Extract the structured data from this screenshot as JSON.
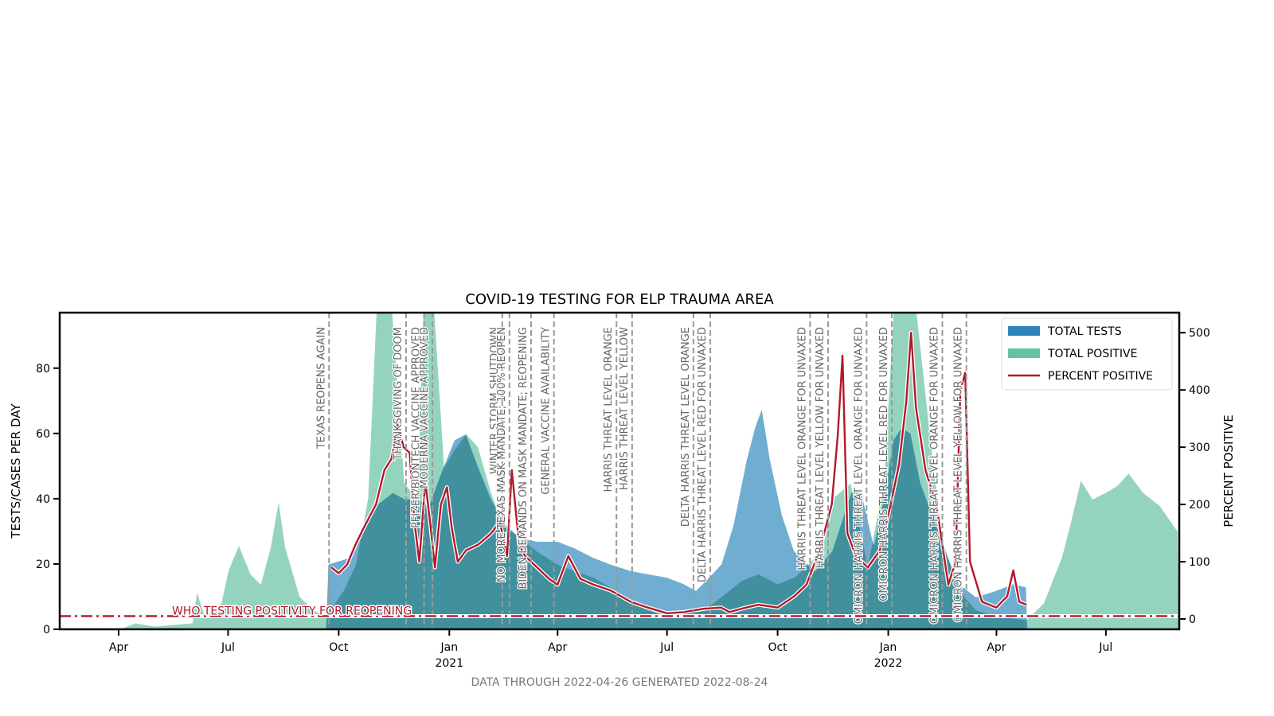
{
  "chart_data": {
    "type": "area",
    "title": "COVID-19 TESTING FOR ELP TRAUMA AREA",
    "ylabel": "TESTS/CASES PER DAY",
    "ylabel_right": "PERCENT POSITIVE",
    "ylim": [
      0,
      97
    ],
    "ylim_right": [
      -18,
      535
    ],
    "xlim": [
      "2020-02-12",
      "2022-08-31"
    ],
    "grid": false,
    "legend_placement": "top-right",
    "yticks": [
      0,
      20,
      40,
      60,
      80
    ],
    "yticks_right": [
      0,
      100,
      200,
      300,
      400,
      500
    ],
    "xticks": [
      {
        "date": "2020-04-01",
        "label": "Apr",
        "year": ""
      },
      {
        "date": "2020-07-01",
        "label": "Jul",
        "year": ""
      },
      {
        "date": "2020-10-01",
        "label": "Oct",
        "year": ""
      },
      {
        "date": "2021-01-01",
        "label": "Jan",
        "year": "2021"
      },
      {
        "date": "2021-04-01",
        "label": "Apr",
        "year": ""
      },
      {
        "date": "2021-07-01",
        "label": "Jul",
        "year": ""
      },
      {
        "date": "2021-10-01",
        "label": "Oct",
        "year": ""
      },
      {
        "date": "2022-01-01",
        "label": "Jan",
        "year": "2022"
      },
      {
        "date": "2022-04-01",
        "label": "Apr",
        "year": ""
      },
      {
        "date": "2022-07-01",
        "label": "Jul",
        "year": ""
      }
    ],
    "series": [
      {
        "name": "TOTAL TESTS",
        "color": "#67a9cf",
        "axis": "left",
        "points": [
          [
            "2020-09-20",
            0
          ],
          [
            "2020-09-22",
            20
          ],
          [
            "2020-10-10",
            22
          ],
          [
            "2020-10-20",
            30
          ],
          [
            "2020-11-01",
            38
          ],
          [
            "2020-11-15",
            42
          ],
          [
            "2020-11-25",
            40
          ],
          [
            "2020-12-05",
            40
          ],
          [
            "2020-12-15",
            38
          ],
          [
            "2020-12-25",
            48
          ],
          [
            "2021-01-05",
            58
          ],
          [
            "2021-01-15",
            60
          ],
          [
            "2021-01-25",
            50
          ],
          [
            "2021-02-05",
            40
          ],
          [
            "2021-02-15",
            33
          ],
          [
            "2021-03-01",
            28
          ],
          [
            "2021-03-15",
            27
          ],
          [
            "2021-04-01",
            27
          ],
          [
            "2021-04-15",
            25
          ],
          [
            "2021-05-01",
            22
          ],
          [
            "2021-05-15",
            20
          ],
          [
            "2021-06-01",
            18
          ],
          [
            "2021-06-15",
            17
          ],
          [
            "2021-07-01",
            16
          ],
          [
            "2021-07-15",
            14
          ],
          [
            "2021-07-25",
            12
          ],
          [
            "2021-08-05",
            16
          ],
          [
            "2021-08-15",
            20
          ],
          [
            "2021-08-25",
            32
          ],
          [
            "2021-09-05",
            52
          ],
          [
            "2021-09-12",
            62
          ],
          [
            "2021-09-18",
            68
          ],
          [
            "2021-09-25",
            52
          ],
          [
            "2021-10-05",
            35
          ],
          [
            "2021-10-15",
            24
          ],
          [
            "2021-11-01",
            18
          ],
          [
            "2021-11-15",
            24
          ],
          [
            "2021-12-01",
            42
          ],
          [
            "2021-12-10",
            42
          ],
          [
            "2021-12-20",
            26
          ],
          [
            "2021-12-28",
            40
          ],
          [
            "2022-01-05",
            58
          ],
          [
            "2022-01-12",
            62
          ],
          [
            "2022-01-20",
            60
          ],
          [
            "2022-01-28",
            45
          ],
          [
            "2022-02-10",
            32
          ],
          [
            "2022-02-20",
            22
          ],
          [
            "2022-03-01",
            14
          ],
          [
            "2022-03-15",
            10
          ],
          [
            "2022-04-01",
            12
          ],
          [
            "2022-04-15",
            14
          ],
          [
            "2022-04-26",
            13
          ],
          [
            "2022-04-27",
            0
          ]
        ]
      },
      {
        "name": "TOTAL POSITIVE",
        "color": "#66c2a4",
        "axis": "left",
        "points": [
          [
            "2020-02-12",
            0
          ],
          [
            "2020-04-01",
            0
          ],
          [
            "2020-04-15",
            2
          ],
          [
            "2020-05-01",
            1
          ],
          [
            "2020-06-01",
            2
          ],
          [
            "2020-06-05",
            12
          ],
          [
            "2020-06-12",
            4
          ],
          [
            "2020-06-25",
            8
          ],
          [
            "2020-07-01",
            18
          ],
          [
            "2020-07-10",
            26
          ],
          [
            "2020-07-20",
            17
          ],
          [
            "2020-07-28",
            14
          ],
          [
            "2020-08-05",
            25
          ],
          [
            "2020-08-12",
            40
          ],
          [
            "2020-08-18",
            25
          ],
          [
            "2020-08-30",
            10
          ],
          [
            "2020-09-10",
            6
          ],
          [
            "2020-09-20",
            4
          ],
          [
            "2020-10-05",
            12
          ],
          [
            "2020-10-15",
            20
          ],
          [
            "2020-10-25",
            40
          ],
          [
            "2020-11-01",
            97
          ],
          [
            "2020-11-15",
            97
          ],
          [
            "2020-11-25",
            45
          ],
          [
            "2020-12-05",
            40
          ],
          [
            "2020-12-10",
            97
          ],
          [
            "2020-12-20",
            97
          ],
          [
            "2020-12-28",
            50
          ],
          [
            "2021-01-05",
            55
          ],
          [
            "2021-01-15",
            60
          ],
          [
            "2021-01-25",
            56
          ],
          [
            "2021-02-05",
            42
          ],
          [
            "2021-02-15",
            32
          ],
          [
            "2021-03-01",
            28
          ],
          [
            "2021-03-15",
            24
          ],
          [
            "2021-04-01",
            20
          ],
          [
            "2021-04-15",
            18
          ],
          [
            "2021-05-01",
            16
          ],
          [
            "2021-05-15",
            13
          ],
          [
            "2021-06-01",
            9
          ],
          [
            "2021-06-15",
            6
          ],
          [
            "2021-07-01",
            4
          ],
          [
            "2021-07-15",
            5
          ],
          [
            "2021-08-01",
            6
          ],
          [
            "2021-08-15",
            10
          ],
          [
            "2021-09-01",
            15
          ],
          [
            "2021-09-15",
            17
          ],
          [
            "2021-10-01",
            14
          ],
          [
            "2021-10-15",
            16
          ],
          [
            "2021-11-01",
            22
          ],
          [
            "2021-11-15",
            40
          ],
          [
            "2021-12-01",
            45
          ],
          [
            "2021-12-15",
            20
          ],
          [
            "2021-12-28",
            45
          ],
          [
            "2022-01-05",
            97
          ],
          [
            "2022-01-25",
            97
          ],
          [
            "2022-02-05",
            60
          ],
          [
            "2022-02-15",
            28
          ],
          [
            "2022-03-01",
            12
          ],
          [
            "2022-03-15",
            6
          ],
          [
            "2022-04-01",
            4
          ],
          [
            "2022-04-26",
            3
          ],
          [
            "2022-05-10",
            8
          ],
          [
            "2022-05-25",
            22
          ],
          [
            "2022-06-01",
            32
          ],
          [
            "2022-06-10",
            46
          ],
          [
            "2022-06-20",
            40
          ],
          [
            "2022-07-01",
            42
          ],
          [
            "2022-07-10",
            44
          ],
          [
            "2022-07-20",
            48
          ],
          [
            "2022-08-01",
            42
          ],
          [
            "2022-08-15",
            38
          ],
          [
            "2022-08-30",
            30
          ],
          [
            "2022-08-31",
            0
          ]
        ]
      },
      {
        "name": "PERCENT POSITIVE",
        "color": "#b2182b",
        "axis": "right",
        "points": [
          [
            "2020-09-25",
            90
          ],
          [
            "2020-10-01",
            80
          ],
          [
            "2020-10-08",
            95
          ],
          [
            "2020-10-15",
            130
          ],
          [
            "2020-10-22",
            160
          ],
          [
            "2020-11-01",
            200
          ],
          [
            "2020-11-08",
            260
          ],
          [
            "2020-11-14",
            280
          ],
          [
            "2020-11-19",
            340
          ],
          [
            "2020-11-24",
            300
          ],
          [
            "2020-11-29",
            290
          ],
          [
            "2020-12-03",
            170
          ],
          [
            "2020-12-07",
            100
          ],
          [
            "2020-12-12",
            240
          ],
          [
            "2020-12-16",
            170
          ],
          [
            "2020-12-20",
            90
          ],
          [
            "2020-12-25",
            200
          ],
          [
            "2020-12-30",
            230
          ],
          [
            "2021-01-03",
            160
          ],
          [
            "2021-01-08",
            100
          ],
          [
            "2021-01-15",
            120
          ],
          [
            "2021-01-25",
            130
          ],
          [
            "2021-02-05",
            150
          ],
          [
            "2021-02-12",
            170
          ],
          [
            "2021-02-18",
            110
          ],
          [
            "2021-02-22",
            260
          ],
          [
            "2021-02-28",
            130
          ],
          [
            "2021-03-05",
            110
          ],
          [
            "2021-03-15",
            90
          ],
          [
            "2021-03-25",
            70
          ],
          [
            "2021-04-01",
            60
          ],
          [
            "2021-04-10",
            110
          ],
          [
            "2021-04-20",
            70
          ],
          [
            "2021-05-01",
            60
          ],
          [
            "2021-05-15",
            50
          ],
          [
            "2021-06-01",
            30
          ],
          [
            "2021-06-15",
            20
          ],
          [
            "2021-07-01",
            10
          ],
          [
            "2021-07-15",
            12
          ],
          [
            "2021-08-01",
            18
          ],
          [
            "2021-08-15",
            20
          ],
          [
            "2021-08-22",
            12
          ],
          [
            "2021-09-01",
            18
          ],
          [
            "2021-09-15",
            25
          ],
          [
            "2021-10-01",
            20
          ],
          [
            "2021-10-15",
            40
          ],
          [
            "2021-10-25",
            60
          ],
          [
            "2021-11-05",
            120
          ],
          [
            "2021-11-15",
            200
          ],
          [
            "2021-11-20",
            320
          ],
          [
            "2021-11-24",
            460
          ],
          [
            "2021-11-28",
            150
          ],
          [
            "2021-12-05",
            110
          ],
          [
            "2021-12-15",
            90
          ],
          [
            "2021-12-25",
            120
          ],
          [
            "2022-01-03",
            200
          ],
          [
            "2022-01-10",
            270
          ],
          [
            "2022-01-16",
            380
          ],
          [
            "2022-01-20",
            500
          ],
          [
            "2022-01-24",
            370
          ],
          [
            "2022-02-01",
            260
          ],
          [
            "2022-02-10",
            200
          ],
          [
            "2022-02-20",
            60
          ],
          [
            "2022-02-26",
            100
          ],
          [
            "2022-03-02",
            400
          ],
          [
            "2022-03-06",
            430
          ],
          [
            "2022-03-10",
            100
          ],
          [
            "2022-03-20",
            30
          ],
          [
            "2022-04-01",
            20
          ],
          [
            "2022-04-10",
            40
          ],
          [
            "2022-04-15",
            85
          ],
          [
            "2022-04-20",
            30
          ],
          [
            "2022-04-26",
            25
          ]
        ]
      }
    ],
    "reference_line": {
      "label": "WHO TESTING POSITIVITY FOR REOPENING",
      "value": 5,
      "axis": "right",
      "color": "#b2182b",
      "label_color": "#b2182b"
    },
    "events": [
      {
        "date": "2020-09-23",
        "label": "TEXAS REOPENS AGAIN"
      },
      {
        "date": "2020-11-26",
        "label": "THANKSGIVING OF DOOM"
      },
      {
        "date": "2020-12-11",
        "label": "PFIZER/BIONTECH VACCINE APPROVED"
      },
      {
        "date": "2020-12-18",
        "label": "MODERNA VACCINE APPROVED"
      },
      {
        "date": "2021-02-14",
        "label": "WINTER STORM SHUTDOWN"
      },
      {
        "date": "2021-02-20",
        "label": "NO MORE TEXAS MASK MANDATE; 100% REOPEN"
      },
      {
        "date": "2021-03-10",
        "label": "BIDEN DEMANDS ON MASK MANDATE; REOPENING"
      },
      {
        "date": "2021-03-29",
        "label": "GENERAL VACCINE AVAILABILITY"
      },
      {
        "date": "2021-05-20",
        "label": "HARRIS THREAT LEVEL ORANGE"
      },
      {
        "date": "2021-06-02",
        "label": "HARRIS THREAT LEVEL YELLOW"
      },
      {
        "date": "2021-07-23",
        "label": "DELTA HARRIS THREAT LEVEL ORANGE"
      },
      {
        "date": "2021-08-06",
        "label": "DELTA HARRIS THREAT LEVEL RED FOR UNVAXED"
      },
      {
        "date": "2021-10-28",
        "label": "HARRIS THREAT LEVEL ORANGE FOR UNVAXED"
      },
      {
        "date": "2021-11-12",
        "label": "HARRIS THREAT LEVEL YELLOW FOR UNVAXED"
      },
      {
        "date": "2021-12-14",
        "label": "OMICRON HARRIS THREAT LEVEL ORANGE FOR UNVAXED"
      },
      {
        "date": "2022-01-04",
        "label": "OMICRON HARRIS THREAT LEVEL RED FOR UNVAXED"
      },
      {
        "date": "2022-02-15",
        "label": "OMICRON HARRIS THREAT LEVEL ORANGE FOR UNVAXED"
      },
      {
        "date": "2022-03-07",
        "label": "OMICRON HARRIS THREAT LEVEL YELLOW FOR UNVAXED"
      }
    ],
    "footer": "DATA THROUGH 2022-04-26 GENERATED 2022-08-24",
    "colors": {
      "overlap": "#3fa3a8",
      "event_line": "#9a9a9a",
      "axis": "#000000"
    }
  }
}
